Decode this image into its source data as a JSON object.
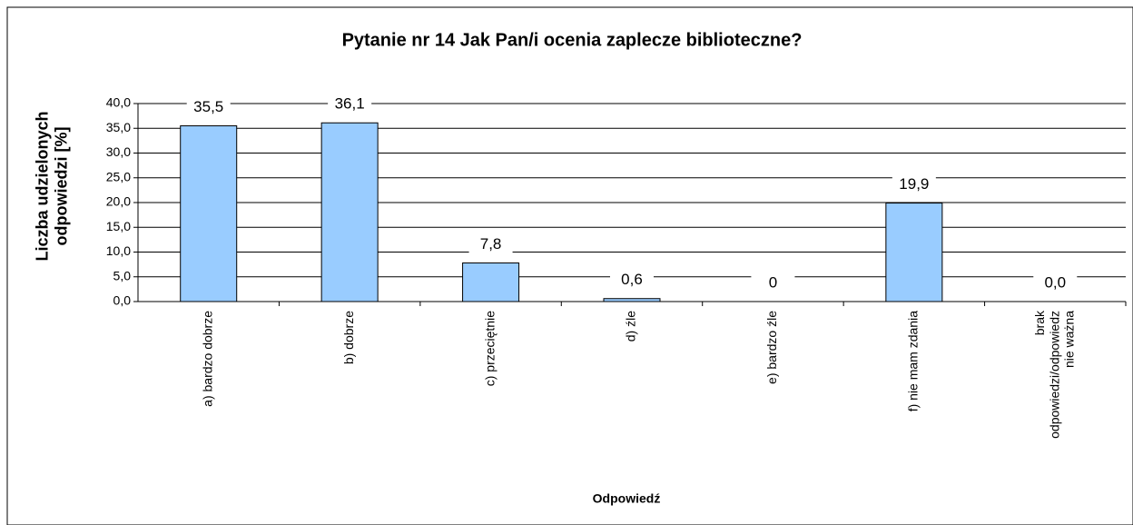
{
  "chart_data": {
    "type": "bar",
    "title": "Pytanie nr 14 Jak Pan/i ocenia zaplecze biblioteczne?",
    "x_label": "Odpowiedź",
    "y_label": "Liczba udzielonych odpowiedzi [%]",
    "categories": [
      "a) bardzo dobrze",
      "b) dobrze",
      "c) przeciętnie",
      "d) źle",
      "e) bardzo źle",
      "f) nie mam zdania",
      "brak odpowiedzi/odpowiedz nie ważna"
    ],
    "values": [
      35.5,
      36.1,
      7.8,
      0.6,
      0,
      19.9,
      0.0
    ],
    "value_labels": [
      "35,5",
      "36,1",
      "7,8",
      "0,6",
      "0",
      "19,9",
      "0,0"
    ],
    "color": "#99ccff",
    "ylim": [
      0,
      40
    ],
    "yticks": [
      {
        "value": 0,
        "label": "0,0"
      },
      {
        "value": 5,
        "label": "5,0"
      },
      {
        "value": 10,
        "label": "10,0"
      },
      {
        "value": 15,
        "label": "15,0"
      },
      {
        "value": 20,
        "label": "20,0"
      },
      {
        "value": 25,
        "label": "25,0"
      },
      {
        "value": 30,
        "label": "30,0"
      },
      {
        "value": 35,
        "label": "35,0"
      },
      {
        "value": 40,
        "label": "40,0"
      }
    ],
    "grid": true
  }
}
